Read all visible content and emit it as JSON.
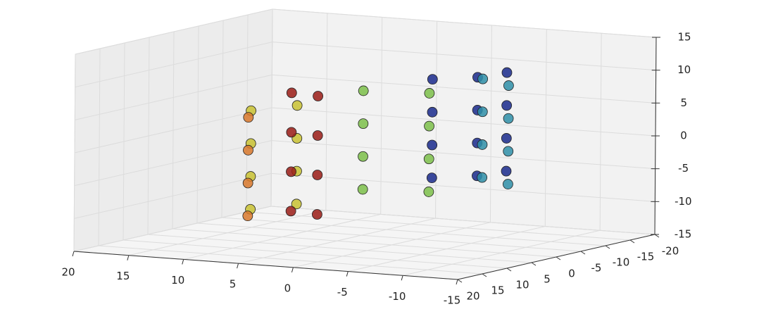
{
  "chart_data": {
    "type": "scatter3d",
    "xlim": [
      20,
      -15
    ],
    "xticks": [
      20,
      15,
      10,
      5,
      0,
      -5,
      -10,
      -15
    ],
    "ylim": [
      20,
      -20
    ],
    "yticks": [
      20,
      15,
      10,
      5,
      0,
      -5,
      -10,
      -15,
      -20
    ],
    "zlim": [
      -15,
      15
    ],
    "zticks": [
      -15,
      -10,
      -5,
      0,
      5,
      10,
      15
    ],
    "grid": true,
    "series": [
      {
        "color": "#1a2a8c",
        "x": [
          -6.3,
          -6.3,
          -6.3,
          -6.3,
          -8.8,
          -8.8,
          -8.8,
          -8.8,
          -9.4,
          -9.4,
          -9.4,
          -9.4
        ],
        "y": [
          6.0,
          6.0,
          6.0,
          6.0,
          2.4,
          2.4,
          2.4,
          2.4,
          -2.2,
          -2.2,
          -2.2,
          -2.2
        ],
        "z": [
          -3,
          2,
          7,
          12,
          -3,
          2,
          7,
          12,
          -3,
          2,
          7,
          12
        ]
      },
      {
        "color": "#2f8fa8",
        "x": [
          -7.5,
          -7.5,
          -7.5,
          -7.5,
          -3.7,
          -3.7,
          -3.7,
          -3.7
        ],
        "y": [
          -6.8,
          -6.8,
          -6.8,
          -6.8,
          -10.0,
          -10.0,
          -10.0,
          -10.0
        ],
        "z": [
          -6,
          -1,
          4,
          9,
          -6,
          -1,
          4,
          9
        ]
      },
      {
        "color": "#7cc04a",
        "x": [
          1.6,
          1.6,
          1.6,
          1.6,
          6.9,
          6.9,
          6.9,
          6.9
        ],
        "y": [
          -11.0,
          -11.0,
          -11.0,
          -11.0,
          -9.4,
          -9.4,
          -9.4,
          -9.4
        ],
        "z": [
          -9,
          -4,
          1,
          6,
          -9,
          -4,
          1,
          6
        ]
      },
      {
        "color": "#c9c232",
        "x": [
          11.0,
          11.0,
          11.0,
          11.0,
          12.6,
          12.6,
          12.6,
          12.6
        ],
        "y": [
          -5.1,
          -5.1,
          -5.1,
          -5.1,
          0.7,
          0.7,
          0.7,
          0.7
        ],
        "z": [
          -11,
          -6,
          -1,
          4,
          -11,
          -6,
          -1,
          4
        ]
      },
      {
        "color": "#d8782c",
        "x": [
          8.8,
          8.8,
          8.8,
          8.8
        ],
        "y": [
          9.7,
          9.7,
          9.7,
          9.7
        ],
        "z": [
          -10,
          -5,
          0,
          5
        ]
      },
      {
        "color": "#9a1c16",
        "x": [
          3.3,
          3.3,
          3.3,
          3.3,
          0.5,
          0.5,
          0.5,
          0.5
        ],
        "y": [
          13.2,
          13.2,
          13.2,
          13.2,
          14.1,
          14.1,
          14.1,
          14.1
        ],
        "z": [
          -8,
          -2,
          4,
          10,
          -8,
          -2,
          4,
          10
        ]
      }
    ]
  }
}
